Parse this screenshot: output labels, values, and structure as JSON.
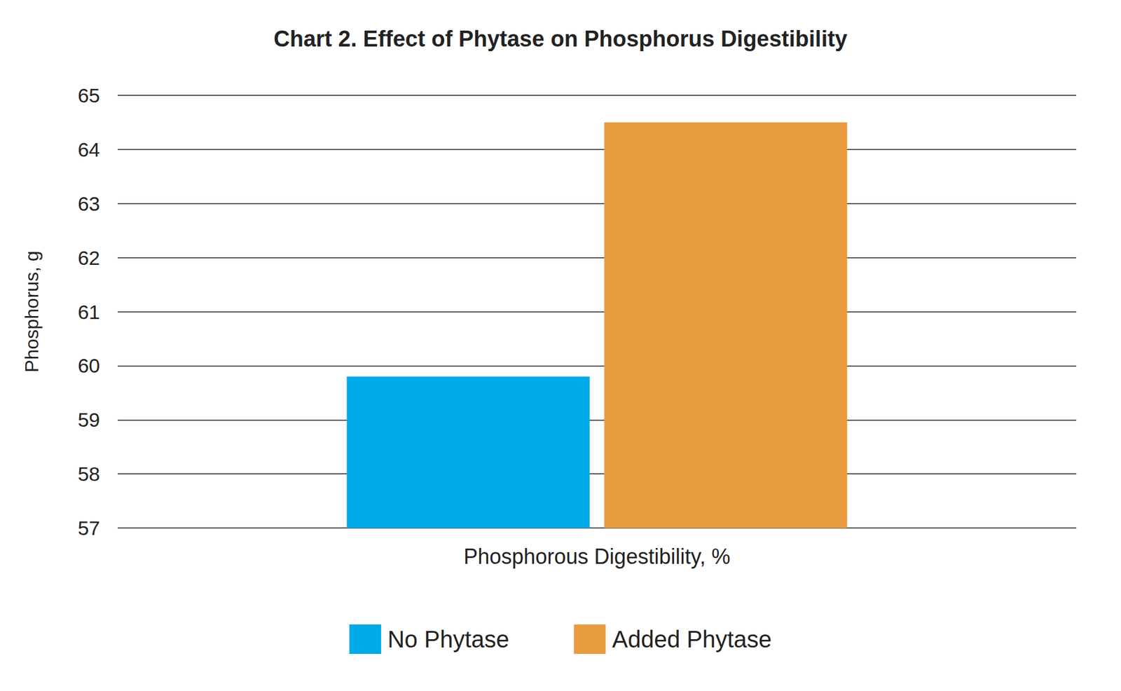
{
  "chart_data": {
    "type": "bar",
    "title": "Chart 2. Effect of Phytase on Phosphorus Digestibility",
    "y_label": "Phosphorus, g",
    "categories": [
      "Phosphorous Digestibility, %"
    ],
    "series": [
      {
        "name": "No Phytase",
        "color": "#00aae7",
        "values": [
          59.8
        ]
      },
      {
        "name": "Added Phytase",
        "color": "#e99b3f",
        "values": [
          64.5
        ]
      }
    ],
    "ylim": [
      57,
      65
    ],
    "yticks": [
      57,
      58,
      59,
      60,
      61,
      62,
      63,
      64,
      65
    ],
    "grid": true,
    "legend": "bottom"
  }
}
